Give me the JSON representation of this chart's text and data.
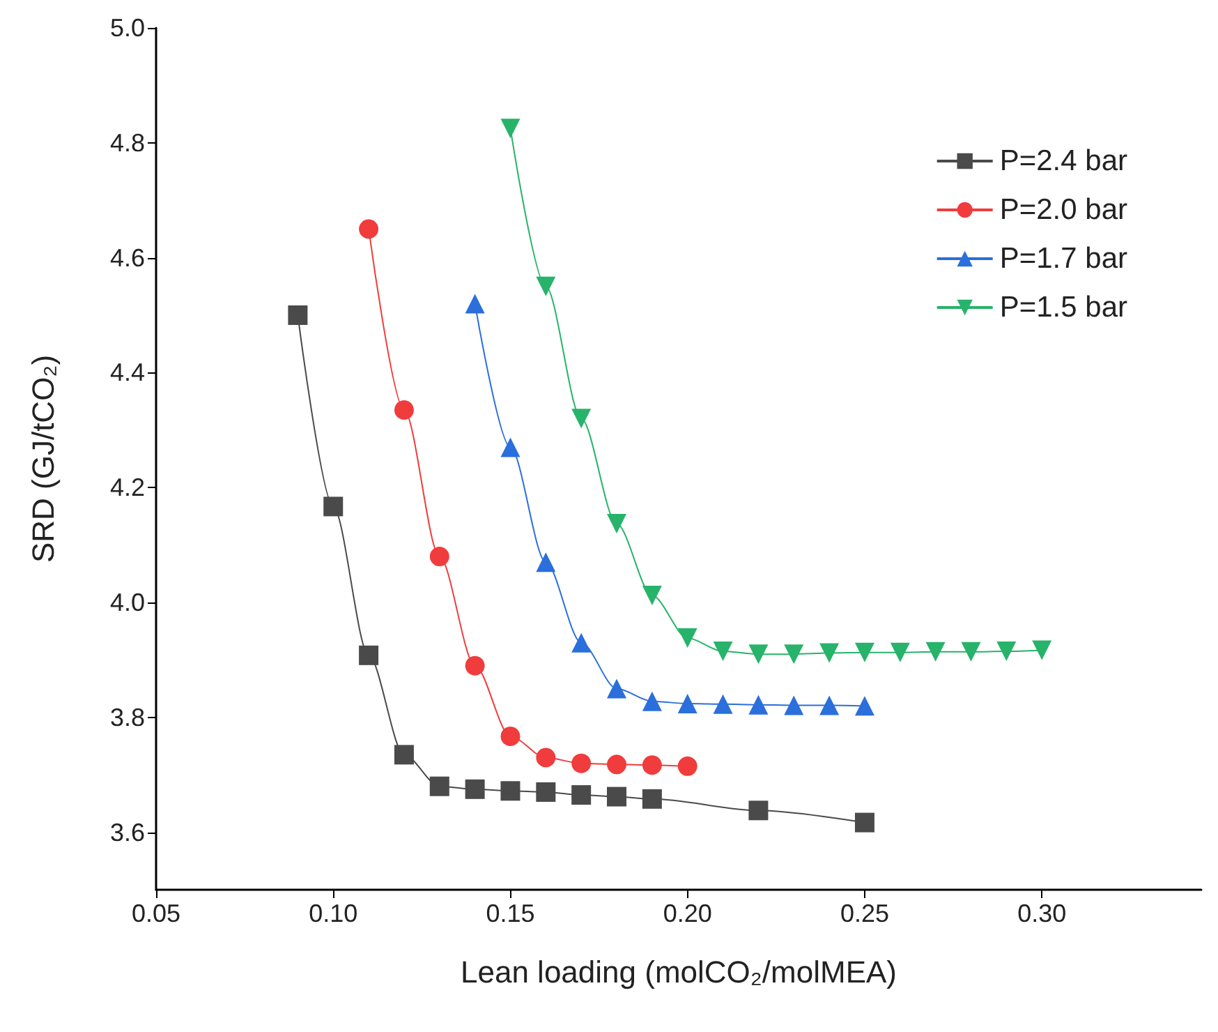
{
  "chart_data": {
    "type": "line",
    "xlabel": "Lean loading (molCO₂/molMEA)",
    "ylabel": "SRD (GJ/tCO₂)",
    "xlim": [
      0.05,
      0.345
    ],
    "xticks": [
      {
        "value": 0.05,
        "label": "0.05"
      },
      {
        "value": 0.1,
        "label": "0.10"
      },
      {
        "value": 0.15,
        "label": "0.15"
      },
      {
        "value": 0.2,
        "label": "0.20"
      },
      {
        "value": 0.25,
        "label": "0.25"
      },
      {
        "value": 0.3,
        "label": "0.30"
      }
    ],
    "ylim": [
      3.5,
      5.0
    ],
    "yticks": [
      {
        "value": 3.6,
        "label": "3.6"
      },
      {
        "value": 3.8,
        "label": "3.8"
      },
      {
        "value": 4.0,
        "label": "4.0"
      },
      {
        "value": 4.2,
        "label": "4.2"
      },
      {
        "value": 4.4,
        "label": "4.4"
      },
      {
        "value": 4.6,
        "label": "4.6"
      },
      {
        "value": 4.8,
        "label": "4.8"
      },
      {
        "value": 5.0,
        "label": "5.0"
      }
    ],
    "grid": false,
    "legend": "top right",
    "series": [
      {
        "name": "P=2.4 bar",
        "color": "#4a4a4a",
        "marker": "square",
        "x": [
          0.09,
          0.1,
          0.11,
          0.12,
          0.13,
          0.14,
          0.15,
          0.16,
          0.17,
          0.18,
          0.19,
          0.22,
          0.25
        ],
        "values": [
          4.5,
          4.167,
          3.908,
          3.735,
          3.68,
          3.675,
          3.672,
          3.67,
          3.665,
          3.662,
          3.658,
          3.638,
          3.617
        ]
      },
      {
        "name": "P=2.0 bar",
        "color": "#f03c3c",
        "marker": "circle",
        "x": [
          0.11,
          0.12,
          0.13,
          0.14,
          0.15,
          0.16,
          0.17,
          0.18,
          0.19,
          0.2
        ],
        "values": [
          4.65,
          4.335,
          4.08,
          3.89,
          3.767,
          3.73,
          3.72,
          3.718,
          3.717,
          3.715
        ]
      },
      {
        "name": "P=1.7 bar",
        "color": "#2a6fdb",
        "marker": "triangle",
        "x": [
          0.14,
          0.15,
          0.16,
          0.17,
          0.18,
          0.19,
          0.2,
          0.21,
          0.22,
          0.23,
          0.24,
          0.25
        ],
        "values": [
          4.52,
          4.27,
          4.07,
          3.93,
          3.85,
          3.828,
          3.824,
          3.823,
          3.822,
          3.821,
          3.821,
          3.82
        ]
      },
      {
        "name": "P=1.5 bar",
        "color": "#27b36a",
        "marker": "triangle-down",
        "x": [
          0.15,
          0.16,
          0.17,
          0.18,
          0.19,
          0.2,
          0.21,
          0.22,
          0.23,
          0.24,
          0.25,
          0.26,
          0.27,
          0.28,
          0.29,
          0.3
        ],
        "values": [
          4.825,
          4.55,
          4.32,
          4.137,
          4.012,
          3.938,
          3.915,
          3.91,
          3.91,
          3.912,
          3.913,
          3.913,
          3.914,
          3.914,
          3.915,
          3.917
        ]
      }
    ]
  }
}
